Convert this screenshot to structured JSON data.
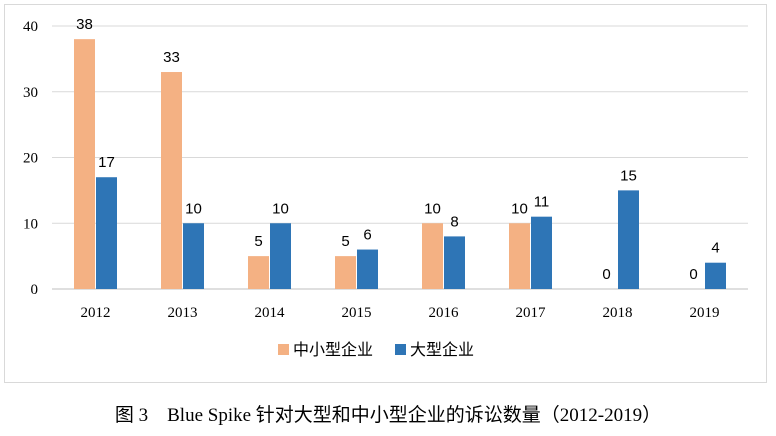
{
  "chart_data": {
    "type": "bar",
    "categories": [
      "2012",
      "2013",
      "2014",
      "2015",
      "2016",
      "2017",
      "2018",
      "2019"
    ],
    "series": [
      {
        "name": "中小型企业",
        "color": "#f4b183",
        "values": [
          38,
          33,
          5,
          5,
          10,
          10,
          0,
          0
        ]
      },
      {
        "name": "大型企业",
        "color": "#2e75b6",
        "values": [
          17,
          10,
          10,
          6,
          8,
          11,
          15,
          4
        ]
      }
    ],
    "ylim": [
      0,
      40
    ],
    "yticks": [
      0,
      10,
      20,
      30,
      40
    ],
    "grid": true,
    "legend": "bottom",
    "data_labels": true
  },
  "caption": "图 3　Blue Spike 针对大型和中小型企业的诉讼数量（2012-2019）"
}
